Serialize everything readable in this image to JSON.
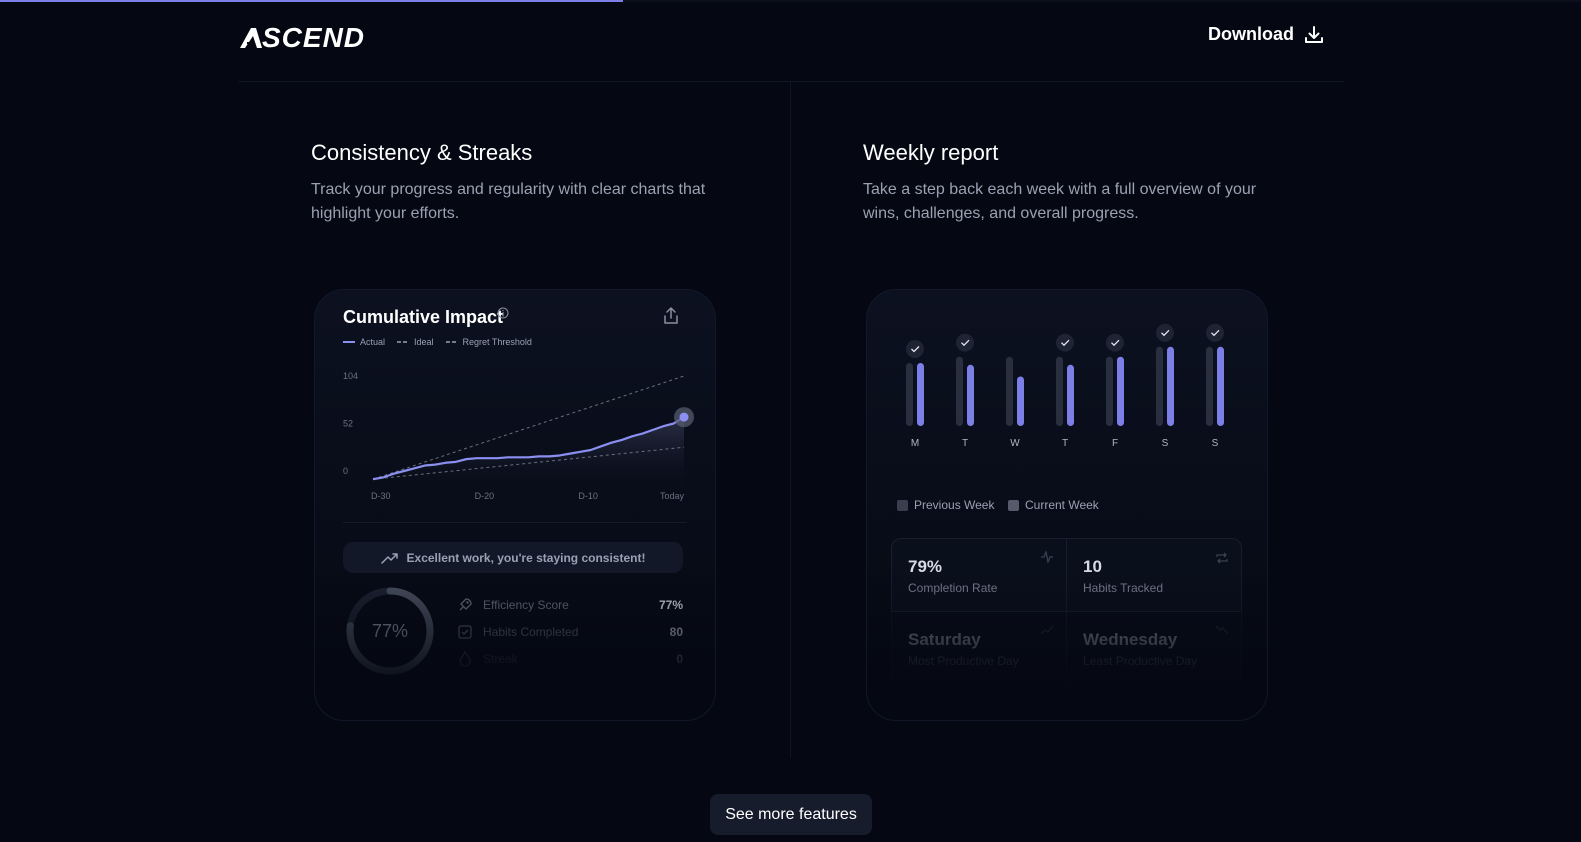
{
  "header": {
    "logo_text": "SCEND",
    "download_label": "Download"
  },
  "progress": {
    "value": 0.394
  },
  "features": {
    "left": {
      "title": "Consistency & Streaks",
      "description": "Track your progress and regularity with clear charts that highlight your efforts."
    },
    "right": {
      "title": "Weekly report",
      "description": "Take a step back each week with a full overview of your wins, challenges, and overall progress."
    }
  },
  "impact_card": {
    "title": "Cumulative Impact",
    "legend": {
      "actual": "Actual",
      "ideal": "Ideal",
      "regret": "Regret Threshold"
    },
    "banner": "Excellent work, you're staying consistent!",
    "ring_value": "77%",
    "stats": [
      {
        "label": "Efficiency Score",
        "value": "77%",
        "icon": "rocket-icon"
      },
      {
        "label": "Habits Completed",
        "value": "80",
        "icon": "checkbox-icon"
      },
      {
        "label": "Streak",
        "value": "0",
        "icon": "flame-icon"
      }
    ]
  },
  "chart_data": {
    "type": "line",
    "title": "Cumulative Impact",
    "x_tick_labels": [
      "D-30",
      "D-20",
      "D-10",
      "Today"
    ],
    "y_tick_labels": [
      "104",
      "52",
      "0"
    ],
    "ylim": [
      0,
      104
    ],
    "series": [
      {
        "name": "Actual",
        "x": [
          -30,
          -29,
          -28,
          -27,
          -26,
          -25,
          -24,
          -23,
          -22,
          -21,
          -20,
          -19,
          -18,
          -17,
          -16,
          -15,
          -14,
          -13,
          -12,
          -11,
          -10,
          -9,
          -8,
          -7,
          -6,
          -5,
          -4,
          -3,
          -2,
          -1,
          0
        ],
        "y": [
          -9,
          -7,
          -3,
          0,
          3,
          6,
          7,
          9,
          10,
          13,
          14,
          14,
          14,
          15,
          15,
          15,
          16,
          16,
          17,
          19,
          21,
          23,
          27,
          31,
          34,
          38,
          41,
          45,
          49,
          52,
          59
        ]
      },
      {
        "name": "Ideal",
        "x": [
          -30,
          0
        ],
        "y": [
          -9,
          104
        ]
      },
      {
        "name": "Regret Threshold",
        "x": [
          -30,
          0
        ],
        "y": [
          -9,
          26
        ]
      }
    ],
    "end_marker": {
      "x": 0,
      "y": 59
    },
    "colors": {
      "actual": "#8b8ff0",
      "guides": "#6a6f80"
    }
  },
  "weekly_card": {
    "days": [
      {
        "label": "M",
        "previous": 0.7,
        "current": 0.7,
        "checked": true
      },
      {
        "label": "T",
        "previous": 0.77,
        "current": 0.68,
        "checked": true
      },
      {
        "label": "W",
        "previous": 0.77,
        "current": 0.55,
        "checked": false
      },
      {
        "label": "T",
        "previous": 0.77,
        "current": 0.68,
        "checked": true
      },
      {
        "label": "F",
        "previous": 0.77,
        "current": 0.77,
        "checked": true
      },
      {
        "label": "S",
        "previous": 0.88,
        "current": 0.88,
        "checked": true
      },
      {
        "label": "S",
        "previous": 0.88,
        "current": 0.88,
        "checked": true
      }
    ],
    "legend": {
      "previous": "Previous Week",
      "current": "Current Week"
    },
    "stats": [
      {
        "value": "79%",
        "label": "Completion Rate",
        "icon": "activity-icon"
      },
      {
        "value": "10",
        "label": "Habits Tracked",
        "icon": "repeat-icon"
      },
      {
        "value": "Saturday",
        "label": "Most Productive Day",
        "icon": "trending-up-icon"
      },
      {
        "value": "Wednesday",
        "label": "Least Productive Day",
        "icon": "trending-down-icon"
      }
    ],
    "colors": {
      "previous": "#2a2f3f",
      "current": "#7c80e6"
    }
  },
  "footer": {
    "see_more_label": "See more features"
  }
}
